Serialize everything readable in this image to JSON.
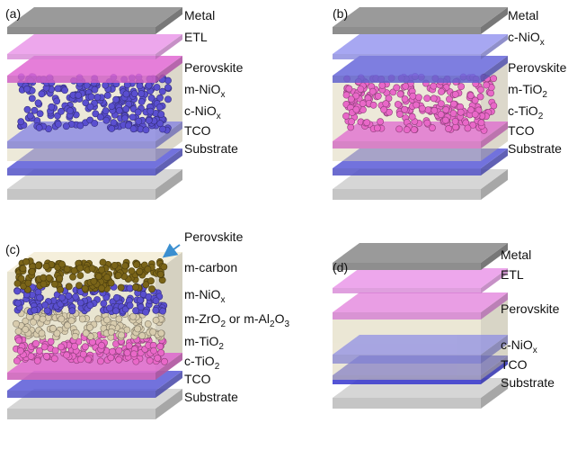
{
  "panels": [
    {
      "tag": "(a)",
      "layers": [
        [
          "Metal"
        ],
        [
          "ETL"
        ],
        [
          "Perovskite"
        ],
        [
          "m-NiO",
          "x"
        ],
        [
          "c-NiO",
          "x"
        ],
        [
          "TCO"
        ],
        [
          "Substrate"
        ]
      ]
    },
    {
      "tag": "(b)",
      "layers": [
        [
          "Metal"
        ],
        [
          "c-NiO",
          "x"
        ],
        [
          "Perovskite"
        ],
        [
          "m-TiO",
          "2"
        ],
        [
          "c-TiO",
          "2"
        ],
        [
          "TCO"
        ],
        [
          "Substrate"
        ]
      ]
    },
    {
      "tag": "(c)",
      "layers": [
        [
          "Perovskite"
        ],
        [
          "m-carbon"
        ],
        [
          "m-NiO",
          "x"
        ],
        [
          "m-ZrO",
          "2",
          " or m-Al",
          "2",
          "O",
          "3"
        ],
        [
          "m-TiO",
          "2"
        ],
        [
          "c-TiO",
          "2"
        ],
        [
          "TCO"
        ],
        [
          "Substrate"
        ]
      ]
    },
    {
      "tag": "(d)",
      "layers": [
        [
          "Metal"
        ],
        [
          "ETL"
        ],
        [
          "Perovskite"
        ],
        [
          "c-NiO",
          "x"
        ],
        [
          "TCO"
        ],
        [
          "Substrate"
        ]
      ]
    }
  ]
}
